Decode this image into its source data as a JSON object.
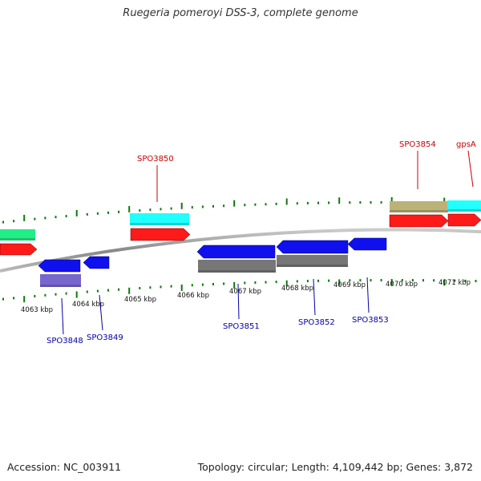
{
  "title": "Ruegeria pomeroyi DSS-3, complete genome",
  "footer": {
    "accession": "Accession: NC_003911",
    "stats": "Topology: circular; Length: 4,109,442 bp; Genes: 3,872"
  },
  "colors": {
    "forward_label": "#cc0000",
    "reverse_label": "#0000aa",
    "tick": "#0b7a0b",
    "backbone": "#999999",
    "cds_forward": "#ff1a1a",
    "cds_reverse": "#1010ee",
    "feature_green": "#22ee88",
    "feature_cyan": "#22ffff",
    "feature_khaki": "#bbb277",
    "feature_gray": "#777777",
    "feature_purple": "#7766cc"
  },
  "scale": {
    "tick_labels": [
      "4063 kbp",
      "4064 kbp",
      "4065 kbp",
      "4066 kbp",
      "4067 kbp",
      "4068 kbp",
      "4069 kbp",
      "4070 kbp",
      "4071 kbp"
    ]
  },
  "genes": {
    "forward": [
      "SPO3850",
      "SPO3854",
      "gpsA"
    ],
    "reverse": [
      "SPO3848",
      "SPO3849",
      "SPO3851",
      "SPO3852",
      "SPO3853"
    ]
  },
  "features": [
    {
      "strand": "forward",
      "track": "outer",
      "type": "feature_green",
      "label": ""
    },
    {
      "strand": "forward",
      "track": "cds",
      "type": "cds_forward",
      "label": ""
    },
    {
      "strand": "forward",
      "track": "outer",
      "type": "feature_cyan",
      "label": "SPO3850"
    },
    {
      "strand": "forward",
      "track": "cds",
      "type": "cds_forward",
      "label": "SPO3850"
    },
    {
      "strand": "forward",
      "track": "outer",
      "type": "feature_khaki",
      "label": "SPO3854"
    },
    {
      "strand": "forward",
      "track": "cds",
      "type": "cds_forward",
      "label": "SPO3854"
    },
    {
      "strand": "forward",
      "track": "outer",
      "type": "feature_cyan",
      "label": "gpsA"
    },
    {
      "strand": "forward",
      "track": "cds",
      "type": "cds_forward",
      "label": "gpsA"
    },
    {
      "strand": "reverse",
      "track": "cds",
      "type": "cds_reverse",
      "label": "SPO3848"
    },
    {
      "strand": "reverse",
      "track": "outer",
      "type": "feature_purple",
      "label": "SPO3848"
    },
    {
      "strand": "reverse",
      "track": "cds",
      "type": "cds_reverse",
      "label": "SPO3849"
    },
    {
      "strand": "reverse",
      "track": "cds",
      "type": "cds_reverse",
      "label": "SPO3851"
    },
    {
      "strand": "reverse",
      "track": "outer",
      "type": "feature_gray",
      "label": "SPO3851"
    },
    {
      "strand": "reverse",
      "track": "cds",
      "type": "cds_reverse",
      "label": "SPO3852"
    },
    {
      "strand": "reverse",
      "track": "outer",
      "type": "feature_gray",
      "label": "SPO3852"
    },
    {
      "strand": "reverse",
      "track": "cds",
      "type": "cds_reverse",
      "label": "SPO3853"
    }
  ]
}
